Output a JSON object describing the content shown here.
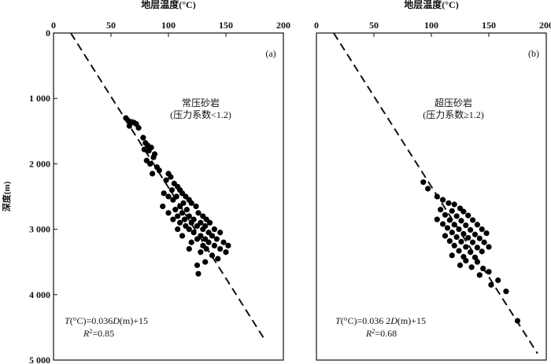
{
  "chart_data": [
    {
      "type": "scatter",
      "panel_label": "(a)",
      "title": "",
      "xlabel": "地层温度(°C)",
      "ylabel": "深度(m)",
      "xlim": [
        0,
        200
      ],
      "ylim": [
        0,
        5000
      ],
      "y_inverted": true,
      "x_ticks": [
        0,
        50,
        100,
        150,
        200
      ],
      "y_ticks": [
        0,
        1000,
        2000,
        3000,
        4000,
        5000
      ],
      "y_tick_labels": [
        "0",
        "1 000",
        "2 000",
        "3 000",
        "4 000",
        "5 000"
      ],
      "annotation_lines": [
        "常压砂岩",
        "(压力系数<1.2)"
      ],
      "equation": {
        "left": "T",
        "mid": "(°C)=0.036",
        "var": "D",
        "right": "(m)+15"
      },
      "r2": {
        "sym": "R",
        "sup": "2",
        "text": "=0.85"
      },
      "trend_line": {
        "slope": 0.036,
        "intercept": 15,
        "depth_from": 0,
        "depth_to": 4700
      },
      "series": [
        {
          "points": [
            [
              63,
              1300
            ],
            [
              65,
              1340
            ],
            [
              68,
              1360
            ],
            [
              70,
              1370
            ],
            [
              72,
              1390
            ],
            [
              66,
              1420
            ],
            [
              74,
              1450
            ],
            [
              78,
              1600
            ],
            [
              80,
              1680
            ],
            [
              82,
              1720
            ],
            [
              79,
              1780
            ],
            [
              83,
              1800
            ],
            [
              85,
              1750
            ],
            [
              88,
              1850
            ],
            [
              81,
              1950
            ],
            [
              84,
              2000
            ],
            [
              87,
              1900
            ],
            [
              90,
              2050
            ],
            [
              92,
              2100
            ],
            [
              86,
              2150
            ],
            [
              100,
              2150
            ],
            [
              102,
              2200
            ],
            [
              98,
              2250
            ],
            [
              105,
              2300
            ],
            [
              108,
              2350
            ],
            [
              103,
              2400
            ],
            [
              110,
              2400
            ],
            [
              96,
              2450
            ],
            [
              112,
              2450
            ],
            [
              100,
              2500
            ],
            [
              107,
              2500
            ],
            [
              115,
              2500
            ],
            [
              104,
              2550
            ],
            [
              113,
              2600
            ],
            [
              118,
              2550
            ],
            [
              95,
              2650
            ],
            [
              110,
              2650
            ],
            [
              120,
              2600
            ],
            [
              106,
              2700
            ],
            [
              116,
              2700
            ],
            [
              124,
              2650
            ],
            [
              100,
              2750
            ],
            [
              112,
              2750
            ],
            [
              126,
              2750
            ],
            [
              108,
              2800
            ],
            [
              118,
              2800
            ],
            [
              130,
              2800
            ],
            [
              104,
              2850
            ],
            [
              114,
              2850
            ],
            [
              122,
              2850
            ],
            [
              133,
              2850
            ],
            [
              110,
              2900
            ],
            [
              120,
              2900
            ],
            [
              128,
              2900
            ],
            [
              136,
              2900
            ],
            [
              115,
              2950
            ],
            [
              125,
              2950
            ],
            [
              132,
              2950
            ],
            [
              108,
              3000
            ],
            [
              118,
              3000
            ],
            [
              130,
              3000
            ],
            [
              140,
              3000
            ],
            [
              122,
              3050
            ],
            [
              135,
              3050
            ],
            [
              145,
              3050
            ],
            [
              112,
              3100
            ],
            [
              128,
              3100
            ],
            [
              138,
              3100
            ],
            [
              125,
              3150
            ],
            [
              132,
              3150
            ],
            [
              142,
              3150
            ],
            [
              120,
              3200
            ],
            [
              135,
              3200
            ],
            [
              148,
              3200
            ],
            [
              130,
              3250
            ],
            [
              140,
              3250
            ],
            [
              152,
              3250
            ],
            [
              118,
              3300
            ],
            [
              133,
              3300
            ],
            [
              145,
              3300
            ],
            [
              150,
              3350
            ],
            [
              128,
              3350
            ],
            [
              138,
              3400
            ],
            [
              143,
              3450
            ],
            [
              132,
              3500
            ],
            [
              125,
              3550
            ],
            [
              126,
              3680
            ]
          ]
        }
      ]
    },
    {
      "type": "scatter",
      "panel_label": "(b)",
      "title": "",
      "xlabel": "地层温度(°C)",
      "ylabel": "",
      "xlim": [
        0,
        200
      ],
      "ylim": [
        0,
        5000
      ],
      "y_inverted": true,
      "x_ticks": [
        0,
        50,
        100,
        150,
        200
      ],
      "annotation_lines": [
        "超压砂岩",
        "(压力系数≥1.2)"
      ],
      "equation": {
        "left": "T",
        "mid": "(°C)=0.036 2",
        "var": "D",
        "right": "(m)+15"
      },
      "r2": {
        "sym": "R",
        "sup": "2",
        "text": "=0.68"
      },
      "trend_line": {
        "slope": 0.0362,
        "intercept": 15,
        "depth_from": 0,
        "depth_to": 4900
      },
      "series": [
        {
          "points": [
            [
              93,
              2280
            ],
            [
              97,
              2380
            ],
            [
              105,
              2500
            ],
            [
              110,
              2550
            ],
            [
              115,
              2600
            ],
            [
              120,
              2620
            ],
            [
              125,
              2680
            ],
            [
              108,
              2700
            ],
            [
              118,
              2720
            ],
            [
              128,
              2730
            ],
            [
              112,
              2780
            ],
            [
              122,
              2800
            ],
            [
              132,
              2790
            ],
            [
              105,
              2850
            ],
            [
              116,
              2860
            ],
            [
              126,
              2870
            ],
            [
              136,
              2860
            ],
            [
              110,
              2920
            ],
            [
              120,
              2930
            ],
            [
              130,
              2940
            ],
            [
              140,
              2930
            ],
            [
              114,
              2980
            ],
            [
              124,
              3000
            ],
            [
              134,
              3010
            ],
            [
              144,
              3000
            ],
            [
              118,
              3050
            ],
            [
              128,
              3070
            ],
            [
              138,
              3080
            ],
            [
              148,
              3060
            ],
            [
              112,
              3100
            ],
            [
              122,
              3120
            ],
            [
              132,
              3130
            ],
            [
              142,
              3140
            ],
            [
              116,
              3180
            ],
            [
              126,
              3190
            ],
            [
              136,
              3200
            ],
            [
              146,
              3200
            ],
            [
              120,
              3250
            ],
            [
              130,
              3270
            ],
            [
              140,
              3280
            ],
            [
              150,
              3270
            ],
            [
              124,
              3330
            ],
            [
              134,
              3350
            ],
            [
              144,
              3340
            ],
            [
              118,
              3400
            ],
            [
              128,
              3420
            ],
            [
              138,
              3430
            ],
            [
              130,
              3480
            ],
            [
              140,
              3500
            ],
            [
              125,
              3550
            ],
            [
              135,
              3580
            ],
            [
              145,
              3600
            ],
            [
              150,
              3650
            ],
            [
              142,
              3700
            ],
            [
              158,
              3780
            ],
            [
              152,
              3850
            ],
            [
              165,
              3950
            ],
            [
              175,
              4400
            ]
          ]
        }
      ]
    }
  ]
}
